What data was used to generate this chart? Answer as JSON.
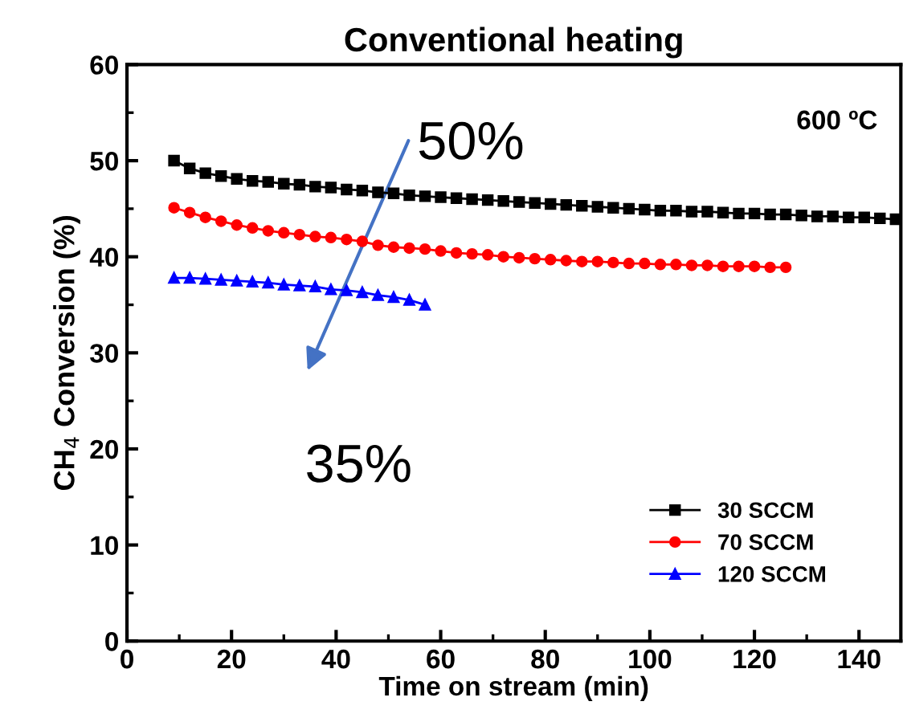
{
  "chart_data": {
    "type": "line",
    "title": "Conventional heating",
    "xlabel": "Time on stream (min)",
    "ylabel": "CH$_{4}$ Conversion (%)",
    "xlim": [
      0,
      148
    ],
    "ylim": [
      0,
      60
    ],
    "xticks": [
      0,
      20,
      40,
      60,
      80,
      100,
      120,
      140
    ],
    "yticks": [
      0,
      10,
      20,
      30,
      40,
      50,
      60
    ],
    "grid": false,
    "legend": "bottom right",
    "line_style": "solid",
    "annotations": [
      "600 ºC",
      "50%",
      "35%"
    ],
    "series": [
      {
        "name": "30 SCCM",
        "color": "#000000",
        "marker": "square",
        "x": [
          9,
          12,
          15,
          18,
          21,
          24,
          27,
          30,
          33,
          36,
          39,
          42,
          45,
          48,
          51,
          54,
          57,
          60,
          63,
          66,
          69,
          72,
          75,
          78,
          81,
          84,
          87,
          90,
          93,
          96,
          99,
          102,
          105,
          108,
          111,
          114,
          117,
          120,
          123,
          126,
          129,
          132,
          135,
          138,
          141,
          144,
          147
        ],
        "values": [
          50.0,
          49.2,
          48.7,
          48.4,
          48.1,
          47.9,
          47.8,
          47.6,
          47.5,
          47.3,
          47.2,
          47.0,
          46.9,
          46.7,
          46.6,
          46.4,
          46.3,
          46.2,
          46.1,
          46.0,
          45.9,
          45.8,
          45.7,
          45.6,
          45.5,
          45.4,
          45.3,
          45.2,
          45.1,
          45.0,
          44.9,
          44.8,
          44.8,
          44.7,
          44.7,
          44.6,
          44.5,
          44.5,
          44.4,
          44.4,
          44.3,
          44.2,
          44.2,
          44.1,
          44.1,
          44.0,
          43.9
        ]
      },
      {
        "name": "70 SCCM",
        "color": "#ff0000",
        "marker": "circle",
        "x": [
          9,
          12,
          15,
          18,
          21,
          24,
          27,
          30,
          33,
          36,
          39,
          42,
          45,
          48,
          51,
          54,
          57,
          60,
          63,
          66,
          69,
          72,
          75,
          78,
          81,
          84,
          87,
          90,
          93,
          96,
          99,
          102,
          105,
          108,
          111,
          114,
          117,
          120,
          123,
          126
        ],
        "values": [
          45.1,
          44.6,
          44.1,
          43.7,
          43.3,
          43.0,
          42.7,
          42.5,
          42.3,
          42.1,
          42.0,
          41.8,
          41.6,
          41.2,
          41.0,
          40.9,
          40.8,
          40.6,
          40.4,
          40.3,
          40.2,
          40.0,
          39.9,
          39.8,
          39.7,
          39.6,
          39.5,
          39.5,
          39.4,
          39.3,
          39.3,
          39.2,
          39.2,
          39.1,
          39.1,
          39.0,
          39.0,
          39.0,
          38.9,
          38.9
        ]
      },
      {
        "name": "120 SCCM",
        "color": "#0000ff",
        "marker": "triangle",
        "x": [
          9,
          12,
          15,
          18,
          21,
          24,
          27,
          30,
          33,
          36,
          39,
          42,
          45,
          48,
          51,
          54,
          57
        ],
        "values": [
          37.8,
          37.8,
          37.7,
          37.6,
          37.5,
          37.4,
          37.3,
          37.1,
          37.0,
          36.9,
          36.6,
          36.5,
          36.3,
          36.0,
          35.8,
          35.5,
          35.0
        ]
      }
    ]
  }
}
